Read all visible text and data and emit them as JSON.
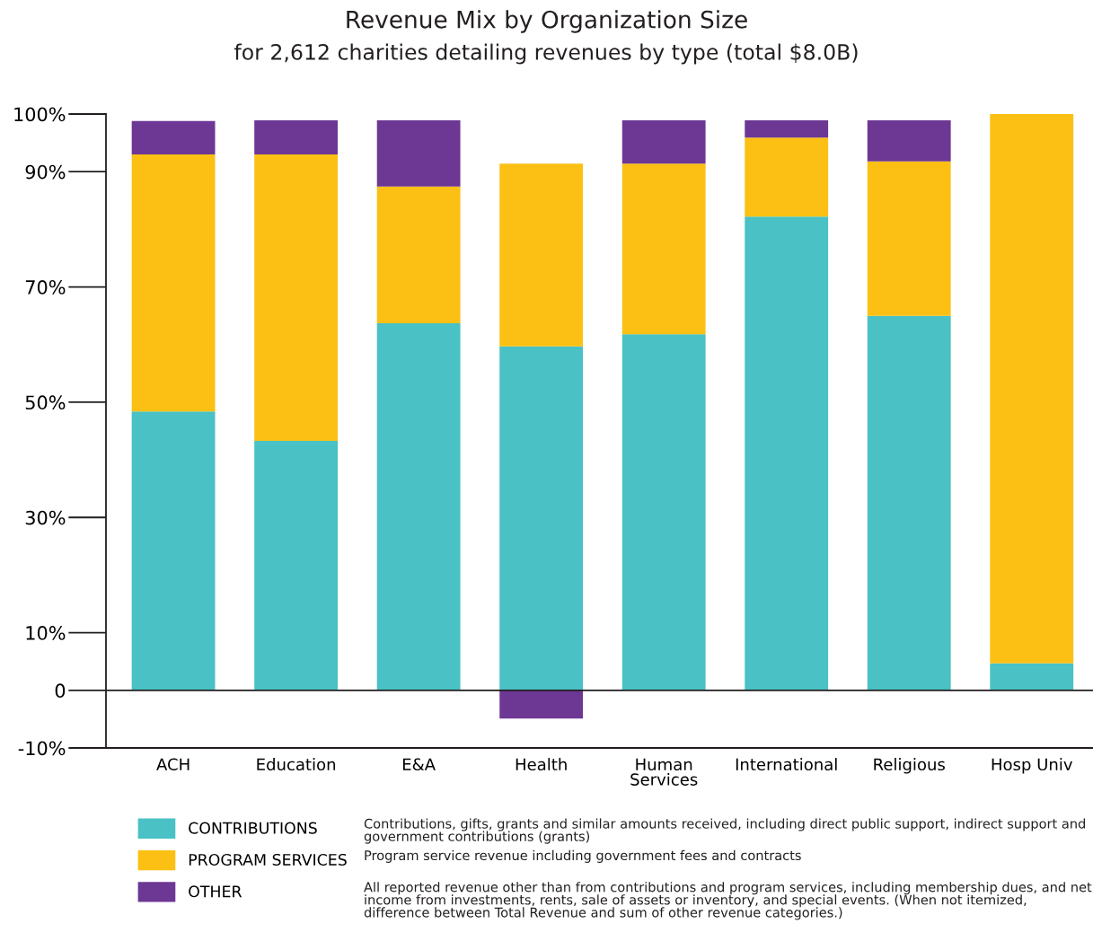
{
  "chart_data": {
    "type": "bar",
    "stacked": true,
    "title": "Revenue Mix by Organization Size",
    "subtitle": "for 2,612 charities detailing revenues by type (total $8.0B)",
    "categories": [
      "ACH",
      "Education",
      "E&A",
      "Health",
      "Human\nServices",
      "International",
      "Religious",
      "Hosp Univ"
    ],
    "series": [
      {
        "name": "CONTRIBUTIONS",
        "color": "#49c1c5",
        "values": [
          48.4,
          43.3,
          63.7,
          59.7,
          61.8,
          82.2,
          65.0,
          4.7
        ]
      },
      {
        "name": "PROGRAM SERVICES",
        "color": "#fbc013",
        "values": [
          44.6,
          49.7,
          23.7,
          31.7,
          29.6,
          13.7,
          26.8,
          95.3
        ]
      },
      {
        "name": "OTHER",
        "color": "#6c3894",
        "values": [
          5.8,
          5.9,
          11.5,
          -4.9,
          7.5,
          3.0,
          7.1,
          null
        ]
      }
    ],
    "ylim": [
      -10,
      100
    ],
    "yticks": [
      {
        "value": 100,
        "label": "100%"
      },
      {
        "value": 90,
        "label": "90%"
      },
      {
        "value": 70,
        "label": "70%"
      },
      {
        "value": 50,
        "label": "50%"
      },
      {
        "value": 30,
        "label": "30%"
      },
      {
        "value": 10,
        "label": "10%"
      },
      0,
      {
        "value": -10,
        "label": "-10%"
      }
    ],
    "ref_lines": [
      {
        "axis": "y",
        "value": 0,
        "color": "#231f20"
      }
    ],
    "grid": false,
    "legend": "bottom",
    "annotations": [
      "Contributions, gifts, grants and similar amounts received, including direct public support, indirect support and government contributions (grants)",
      "Program service revenue including government fees and contracts",
      "All reported revenue other than from contributions and program services, including membership dues, and net income from investments, rents, sale of assets or inventory, and special events. (When not itemized, difference between Total Revenue and sum of other revenue categories.)"
    ]
  }
}
